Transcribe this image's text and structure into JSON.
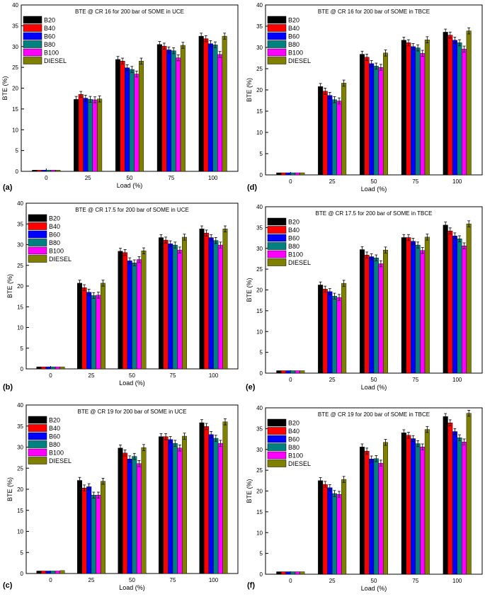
{
  "figure": {
    "legend_entries": [
      "B20",
      "B40",
      "B60",
      "B80",
      "B100",
      "DIESEL"
    ],
    "series_colors": [
      "#000000",
      "#ff0000",
      "#0000ff",
      "#008080",
      "#ff00ff",
      "#808000"
    ]
  },
  "chart_data": [
    {
      "type": "bar",
      "panel_label": "(a)",
      "title": "BTE @ CR 16  for 200 bar of SOME in UCE",
      "xlabel": "Load (%)",
      "ylabel": "BTE (%)",
      "ylim": [
        0,
        40
      ],
      "yticks": [
        0,
        5,
        10,
        15,
        20,
        25,
        30,
        35,
        40
      ],
      "categories": [
        "0",
        "25",
        "50",
        "75",
        "100"
      ],
      "legend_position": "top-left",
      "grid": false,
      "series": [
        {
          "name": "B20",
          "values": [
            0.3,
            17.3,
            26.9,
            30.5,
            32.5
          ]
        },
        {
          "name": "B40",
          "values": [
            0.3,
            18.5,
            26.5,
            30.1,
            31.9
          ]
        },
        {
          "name": "B60",
          "values": [
            0.3,
            17.6,
            24.9,
            29.2,
            30.7
          ]
        },
        {
          "name": "B80",
          "values": [
            0.3,
            17.3,
            24.5,
            29.0,
            30.4
          ]
        },
        {
          "name": "B100",
          "values": [
            0.3,
            17.2,
            23.4,
            27.3,
            28.1
          ]
        },
        {
          "name": "DIESEL",
          "values": [
            0.3,
            17.4,
            26.5,
            30.3,
            32.5
          ]
        }
      ]
    },
    {
      "type": "bar",
      "panel_label": "(d)",
      "title": "BTE @ CR 16  for 200 bar of SOME in TBCE",
      "xlabel": "Load (%)",
      "ylabel": "BTE (%)",
      "ylim": [
        0,
        40
      ],
      "yticks": [
        0,
        5,
        10,
        15,
        20,
        25,
        30,
        35,
        40
      ],
      "categories": [
        "0",
        "25",
        "50",
        "75",
        "100"
      ],
      "legend_position": "top-left",
      "grid": false,
      "series": [
        {
          "name": "B20",
          "values": [
            0.5,
            20.8,
            28.4,
            31.7,
            33.6
          ]
        },
        {
          "name": "B40",
          "values": [
            0.5,
            19.7,
            27.7,
            31.1,
            32.9
          ]
        },
        {
          "name": "B60",
          "values": [
            0.5,
            18.7,
            26.2,
            30.2,
            31.7
          ]
        },
        {
          "name": "B80",
          "values": [
            0.5,
            17.7,
            25.6,
            29.9,
            31.1
          ]
        },
        {
          "name": "B100",
          "values": [
            0.5,
            17.4,
            25.3,
            28.6,
            29.6
          ]
        },
        {
          "name": "DIESEL",
          "values": [
            0.5,
            21.6,
            28.7,
            31.8,
            33.9
          ]
        }
      ]
    },
    {
      "type": "bar",
      "panel_label": "(b)",
      "title": "BTE @ CR 17.5  for 200 bar of SOME in UCE",
      "xlabel": "Load (%)",
      "ylabel": "BTE (%)",
      "ylim": [
        0,
        40
      ],
      "yticks": [
        0,
        5,
        10,
        15,
        20,
        25,
        30,
        35,
        40
      ],
      "categories": [
        "0",
        "25",
        "50",
        "75",
        "100"
      ],
      "legend_position": "top-left",
      "grid": false,
      "series": [
        {
          "name": "B20",
          "values": [
            0.5,
            20.7,
            28.4,
            31.7,
            33.8
          ]
        },
        {
          "name": "B40",
          "values": [
            0.5,
            19.6,
            28.1,
            31.1,
            32.8
          ]
        },
        {
          "name": "B60",
          "values": [
            0.5,
            18.5,
            26.1,
            30.2,
            31.7
          ]
        },
        {
          "name": "B80",
          "values": [
            0.5,
            17.7,
            25.6,
            29.9,
            31.0
          ]
        },
        {
          "name": "B100",
          "values": [
            0.5,
            17.8,
            26.4,
            28.7,
            29.9
          ]
        },
        {
          "name": "DIESEL",
          "values": [
            0.5,
            20.7,
            28.5,
            31.8,
            33.8
          ]
        }
      ]
    },
    {
      "type": "bar",
      "panel_label": "(e)",
      "title": "BTE @ CR 17.5  for 200 bar of SOME in TBCE",
      "xlabel": "Load (%)",
      "ylabel": "BTE (%)",
      "ylim": [
        0,
        40
      ],
      "yticks": [
        0,
        5,
        10,
        15,
        20,
        25,
        30,
        35,
        40
      ],
      "categories": [
        "0",
        "25",
        "50",
        "75",
        "100"
      ],
      "legend_position": "top-left",
      "grid": false,
      "series": [
        {
          "name": "B20",
          "values": [
            0.6,
            21.2,
            29.7,
            32.6,
            35.6
          ]
        },
        {
          "name": "B40",
          "values": [
            0.6,
            20.2,
            28.4,
            32.6,
            34.2
          ]
        },
        {
          "name": "B60",
          "values": [
            0.6,
            19.6,
            28.0,
            31.7,
            33.0
          ]
        },
        {
          "name": "B80",
          "values": [
            0.6,
            18.5,
            27.7,
            30.8,
            32.3
          ]
        },
        {
          "name": "B100",
          "values": [
            0.6,
            18.2,
            26.3,
            29.5,
            30.6
          ]
        },
        {
          "name": "DIESEL",
          "values": [
            0.6,
            21.6,
            29.6,
            32.7,
            35.9
          ]
        }
      ]
    },
    {
      "type": "bar",
      "panel_label": "(c)",
      "title": "BTE @ CR 19  for 200 bar of SOME in UCE",
      "xlabel": "Load (%)",
      "ylabel": "BTE (%)",
      "ylim": [
        0,
        40
      ],
      "yticks": [
        0,
        5,
        10,
        15,
        20,
        25,
        30,
        35,
        40
      ],
      "categories": [
        "0",
        "25",
        "50",
        "75",
        "100"
      ],
      "legend_position": "top-left",
      "grid": false,
      "series": [
        {
          "name": "B20",
          "values": [
            0.6,
            22.1,
            29.8,
            32.5,
            35.8
          ]
        },
        {
          "name": "B40",
          "values": [
            0.6,
            20.3,
            28.6,
            32.5,
            34.9
          ]
        },
        {
          "name": "B60",
          "values": [
            0.6,
            20.6,
            27.2,
            31.8,
            33.0
          ]
        },
        {
          "name": "B80",
          "values": [
            0.6,
            18.6,
            27.8,
            30.9,
            32.1
          ]
        },
        {
          "name": "B100",
          "values": [
            0.6,
            18.6,
            26.1,
            29.8,
            30.9
          ]
        },
        {
          "name": "DIESEL",
          "values": [
            0.7,
            21.9,
            29.9,
            32.6,
            36.0
          ]
        }
      ]
    },
    {
      "type": "bar",
      "panel_label": "(f)",
      "title": "BTE @ CR 19  for 200 bar of SOME in TBCE",
      "xlabel": "Load (%)",
      "ylabel": "BTE (%)",
      "ylim": [
        0,
        40
      ],
      "yticks": [
        0,
        5,
        10,
        15,
        20,
        25,
        30,
        35,
        40
      ],
      "categories": [
        "0",
        "25",
        "50",
        "75",
        "100"
      ],
      "legend_position": "top-left",
      "grid": false,
      "series": [
        {
          "name": "B20",
          "values": [
            0.6,
            22.5,
            30.6,
            34.0,
            37.9
          ]
        },
        {
          "name": "B40",
          "values": [
            0.6,
            21.6,
            29.6,
            33.4,
            36.4
          ]
        },
        {
          "name": "B60",
          "values": [
            0.6,
            20.8,
            27.7,
            32.6,
            34.3
          ]
        },
        {
          "name": "B80",
          "values": [
            0.6,
            19.4,
            27.8,
            31.4,
            32.8
          ]
        },
        {
          "name": "B100",
          "values": [
            0.6,
            19.2,
            26.7,
            30.6,
            31.8
          ]
        },
        {
          "name": "DIESEL",
          "values": [
            0.6,
            22.8,
            31.7,
            34.8,
            38.7
          ]
        }
      ]
    }
  ]
}
